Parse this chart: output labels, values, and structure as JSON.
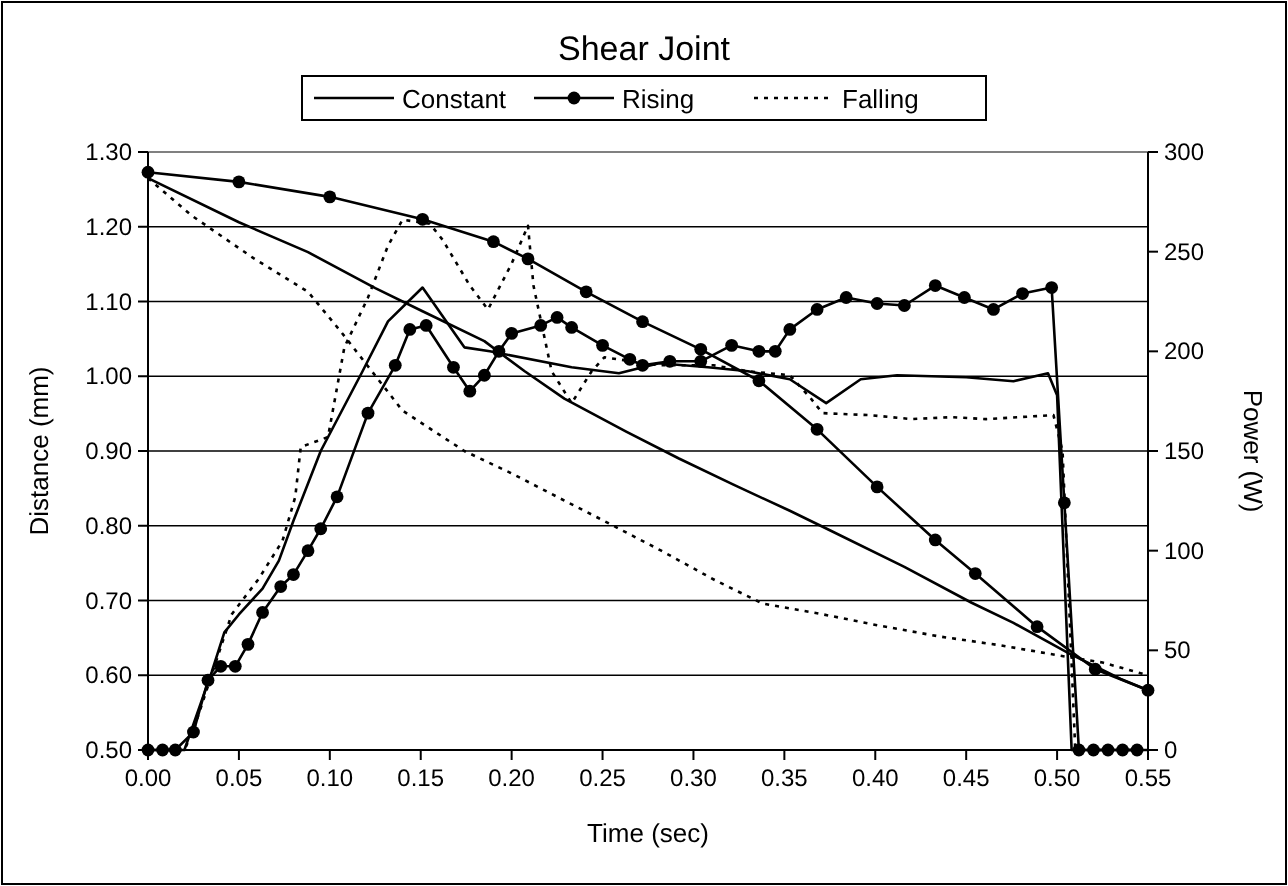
{
  "chart_data": {
    "type": "line",
    "title": "Shear Joint",
    "xlabel": "Time (sec)",
    "ylabel": "Distance (mm)",
    "y2label": "Power (W)",
    "xlim": [
      0,
      0.55
    ],
    "xticks": [
      {
        "value": 0,
        "label": "0.00"
      },
      {
        "value": 0.05,
        "label": "0.05"
      },
      {
        "value": 0.1,
        "label": "0.10"
      },
      {
        "value": 0.15,
        "label": "0.15"
      },
      {
        "value": 0.2,
        "label": "0.20"
      },
      {
        "value": 0.25,
        "label": "0.25"
      },
      {
        "value": 0.3,
        "label": "0.30"
      },
      {
        "value": 0.35,
        "label": "0.35"
      },
      {
        "value": 0.4,
        "label": "0.40"
      },
      {
        "value": 0.45,
        "label": "0.45"
      },
      {
        "value": 0.5,
        "label": "0.50"
      },
      {
        "value": 0.55,
        "label": "0.55"
      }
    ],
    "ylim": [
      0.5,
      1.3
    ],
    "yticks": [
      {
        "value": 0.5,
        "label": "0.50"
      },
      {
        "value": 0.6,
        "label": "0.60"
      },
      {
        "value": 0.7,
        "label": "0.70"
      },
      {
        "value": 0.8,
        "label": "0.80"
      },
      {
        "value": 0.9,
        "label": "0.90"
      },
      {
        "value": 1.0,
        "label": "1.00"
      },
      {
        "value": 1.1,
        "label": "1.10"
      },
      {
        "value": 1.2,
        "label": "1.20"
      },
      {
        "value": 1.3,
        "label": "1.30"
      }
    ],
    "y2lim": [
      0,
      300
    ],
    "y2ticks": [
      0,
      50,
      100,
      150,
      200,
      250,
      300
    ],
    "grid": "y",
    "legend": "top",
    "series": [
      {
        "name": "Constant",
        "color": "#000000",
        "marker": "none",
        "line_style": "solid",
        "x": [
          0,
          0.05,
          0.088,
          0.125,
          0.151,
          0.185,
          0.207,
          0.229,
          0.263,
          0.292,
          0.322,
          0.353,
          0.375,
          0.416,
          0.453,
          0.476,
          0.506,
          0.535,
          0.55
        ],
        "values": [
          1.265,
          1.206,
          1.166,
          1.118,
          1.087,
          1.047,
          1.007,
          0.97,
          0.926,
          0.89,
          0.855,
          0.82,
          0.794,
          0.745,
          0.697,
          0.67,
          0.63,
          0.595,
          0.58
        ]
      },
      {
        "name": "Rising",
        "color": "#000000",
        "marker": "circle",
        "line_style": "solid",
        "x": [
          0,
          0.05,
          0.1,
          0.151,
          0.19,
          0.209,
          0.241,
          0.272,
          0.304,
          0.336,
          0.368,
          0.401,
          0.433,
          0.455,
          0.489,
          0.521,
          0.55
        ],
        "values": [
          1.273,
          1.26,
          1.24,
          1.21,
          1.18,
          1.157,
          1.113,
          1.073,
          1.036,
          0.994,
          0.929,
          0.852,
          0.781,
          0.736,
          0.665,
          0.608,
          0.58
        ]
      },
      {
        "name": "Falling",
        "color": "#000000",
        "marker": "none",
        "line_style": "dotted",
        "x": [
          0,
          0.024,
          0.058,
          0.088,
          0.106,
          0.14,
          0.174,
          0.2,
          0.248,
          0.282,
          0.312,
          0.338,
          0.368,
          0.401,
          0.435,
          0.469,
          0.502,
          0.525,
          0.55
        ],
        "values": [
          1.265,
          1.215,
          1.158,
          1.113,
          1.06,
          0.954,
          0.9,
          0.87,
          0.81,
          0.767,
          0.727,
          0.696,
          0.683,
          0.667,
          0.652,
          0.64,
          0.626,
          0.617,
          0.6
        ]
      },
      {
        "color": "#000000",
        "marker": "none",
        "line_style": "solid",
        "axis": "y2",
        "x": [
          0,
          0.02,
          0.025,
          0.035,
          0.042,
          0.05,
          0.063,
          0.072,
          0.08,
          0.095,
          0.118,
          0.132,
          0.151,
          0.174,
          0.188,
          0.233,
          0.259,
          0.281,
          0.308,
          0.33,
          0.353,
          0.373,
          0.392,
          0.412,
          0.45,
          0.476,
          0.495,
          0.5,
          0.508,
          0.55
        ],
        "values": [
          0,
          0,
          13,
          39,
          59,
          68,
          81,
          95,
          115,
          150,
          190,
          215,
          232,
          202,
          200,
          192,
          189,
          194,
          192,
          190,
          186,
          174,
          186,
          188,
          187,
          185,
          189,
          178,
          0,
          0
        ]
      },
      {
        "color": "#000000",
        "marker": "circle",
        "line_style": "solid",
        "axis": "y2",
        "x": [
          0,
          0.008,
          0.015,
          0.025,
          0.033,
          0.04,
          0.048,
          0.055,
          0.063,
          0.073,
          0.08,
          0.088,
          0.095,
          0.104,
          0.121,
          0.136,
          0.144,
          0.153,
          0.168,
          0.177,
          0.185,
          0.193,
          0.2,
          0.216,
          0.225,
          0.233,
          0.25,
          0.265,
          0.272,
          0.287,
          0.304,
          0.321,
          0.336,
          0.345,
          0.353,
          0.368,
          0.384,
          0.401,
          0.416,
          0.433,
          0.449,
          0.465,
          0.481,
          0.497,
          0.504,
          0.512,
          0.52,
          0.528,
          0.536,
          0.544
        ],
        "values": [
          0,
          0,
          0,
          9,
          35,
          42,
          42,
          53,
          69,
          82,
          88,
          100,
          111,
          127,
          169,
          193,
          211,
          213,
          192,
          180,
          188,
          200,
          209,
          213,
          217,
          212,
          203,
          196,
          193,
          195,
          195,
          203,
          200,
          200,
          211,
          221,
          227,
          224,
          223,
          233,
          227,
          221,
          229,
          232,
          124,
          0,
          0,
          0,
          0,
          0
        ]
      },
      {
        "color": "#000000",
        "marker": "none",
        "line_style": "dotted",
        "axis": "y2",
        "x": [
          0,
          0.02,
          0.025,
          0.046,
          0.061,
          0.074,
          0.081,
          0.084,
          0.099,
          0.108,
          0.121,
          0.132,
          0.14,
          0.155,
          0.162,
          0.177,
          0.187,
          0.2,
          0.209,
          0.212,
          0.222,
          0.233,
          0.244,
          0.251,
          0.281,
          0.311,
          0.33,
          0.353,
          0.364,
          0.371,
          0.397,
          0.42,
          0.442,
          0.461,
          0.498,
          0.503,
          0.51,
          0.55
        ],
        "values": [
          0,
          0,
          10,
          68,
          86,
          105,
          127,
          152,
          157,
          202,
          227,
          253,
          266,
          264,
          256,
          233,
          221,
          244,
          263,
          233,
          190,
          174,
          190,
          197,
          193,
          193,
          190,
          188,
          177,
          169,
          168,
          166,
          167,
          166,
          168,
          150,
          0,
          0
        ]
      }
    ]
  }
}
